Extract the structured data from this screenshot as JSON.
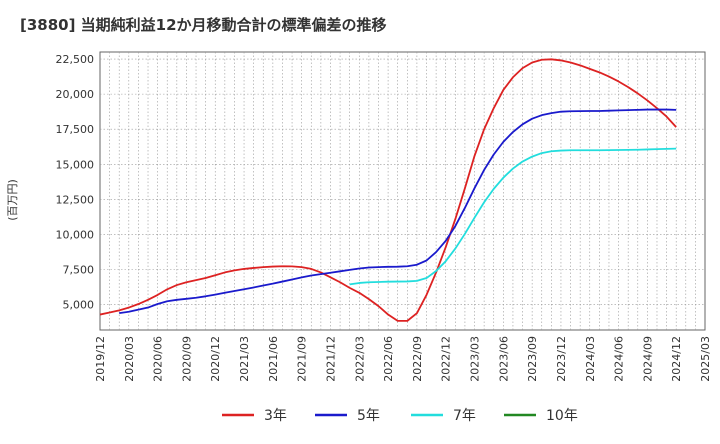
{
  "chart_data": {
    "type": "line",
    "title": "[3880]  当期純利益12か月移動合計の標準偏差の推移",
    "ylabel": "(百万円)",
    "xlabel": "",
    "ylim": [
      3200,
      23000
    ],
    "yticks": [
      5000,
      7500,
      10000,
      12500,
      15000,
      17500,
      20000,
      22500
    ],
    "ytick_labels": [
      "5,000",
      "7,500",
      "10,000",
      "12,500",
      "15,000",
      "17,500",
      "20,000",
      "22,500"
    ],
    "xticks": [
      "2019/12",
      "2020/03",
      "2020/06",
      "2020/09",
      "2020/12",
      "2021/03",
      "2021/06",
      "2021/09",
      "2021/12",
      "2022/03",
      "2022/06",
      "2022/09",
      "2022/12",
      "2023/03",
      "2023/06",
      "2023/09",
      "2023/12",
      "2024/03",
      "2024/06",
      "2024/09",
      "2024/12",
      "2025/03"
    ],
    "grid": true,
    "legend_position": "bottom",
    "series": [
      {
        "name": "3年",
        "color": "#dd2222",
        "points": [
          [
            "2019/12",
            4300
          ],
          [
            "2020/01",
            4450
          ],
          [
            "2020/02",
            4600
          ],
          [
            "2020/03",
            4800
          ],
          [
            "2020/04",
            5050
          ],
          [
            "2020/05",
            5350
          ],
          [
            "2020/06",
            5700
          ],
          [
            "2020/07",
            6100
          ],
          [
            "2020/08",
            6400
          ],
          [
            "2020/09",
            6600
          ],
          [
            "2020/10",
            6750
          ],
          [
            "2020/11",
            6900
          ],
          [
            "2020/12",
            7100
          ],
          [
            "2021/01",
            7300
          ],
          [
            "2021/02",
            7450
          ],
          [
            "2021/03",
            7550
          ],
          [
            "2021/04",
            7620
          ],
          [
            "2021/05",
            7680
          ],
          [
            "2021/06",
            7720
          ],
          [
            "2021/07",
            7740
          ],
          [
            "2021/08",
            7730
          ],
          [
            "2021/09",
            7680
          ],
          [
            "2021/10",
            7550
          ],
          [
            "2021/11",
            7300
          ],
          [
            "2021/12",
            6950
          ],
          [
            "2022/01",
            6600
          ],
          [
            "2022/02",
            6200
          ],
          [
            "2022/03",
            5850
          ],
          [
            "2022/04",
            5400
          ],
          [
            "2022/05",
            4900
          ],
          [
            "2022/06",
            4300
          ],
          [
            "2022/07",
            3850
          ],
          [
            "2022/08",
            3850
          ],
          [
            "2022/09",
            4400
          ],
          [
            "2022/10",
            5700
          ],
          [
            "2022/11",
            7300
          ],
          [
            "2022/12",
            9100
          ],
          [
            "2023/01",
            11100
          ],
          [
            "2023/02",
            13300
          ],
          [
            "2023/03",
            15600
          ],
          [
            "2023/04",
            17500
          ],
          [
            "2023/05",
            19000
          ],
          [
            "2023/06",
            20300
          ],
          [
            "2023/07",
            21200
          ],
          [
            "2023/08",
            21850
          ],
          [
            "2023/09",
            22250
          ],
          [
            "2023/10",
            22450
          ],
          [
            "2023/11",
            22480
          ],
          [
            "2023/12",
            22400
          ],
          [
            "2024/01",
            22250
          ],
          [
            "2024/02",
            22050
          ],
          [
            "2024/03",
            21800
          ],
          [
            "2024/04",
            21550
          ],
          [
            "2024/05",
            21250
          ],
          [
            "2024/06",
            20900
          ],
          [
            "2024/07",
            20500
          ],
          [
            "2024/08",
            20050
          ],
          [
            "2024/09",
            19550
          ],
          [
            "2024/10",
            19000
          ],
          [
            "2024/11",
            18400
          ],
          [
            "2024/12",
            17650
          ]
        ]
      },
      {
        "name": "5年",
        "color": "#1a1acc",
        "points": [
          [
            "2020/02",
            4400
          ],
          [
            "2020/03",
            4500
          ],
          [
            "2020/04",
            4650
          ],
          [
            "2020/05",
            4800
          ],
          [
            "2020/06",
            5050
          ],
          [
            "2020/07",
            5250
          ],
          [
            "2020/08",
            5350
          ],
          [
            "2020/09",
            5420
          ],
          [
            "2020/10",
            5500
          ],
          [
            "2020/11",
            5600
          ],
          [
            "2020/12",
            5720
          ],
          [
            "2021/01",
            5850
          ],
          [
            "2021/02",
            5980
          ],
          [
            "2021/03",
            6100
          ],
          [
            "2021/04",
            6230
          ],
          [
            "2021/05",
            6370
          ],
          [
            "2021/06",
            6500
          ],
          [
            "2021/07",
            6650
          ],
          [
            "2021/08",
            6800
          ],
          [
            "2021/09",
            6950
          ],
          [
            "2021/10",
            7080
          ],
          [
            "2021/11",
            7180
          ],
          [
            "2021/12",
            7280
          ],
          [
            "2022/01",
            7380
          ],
          [
            "2022/02",
            7480
          ],
          [
            "2022/03",
            7580
          ],
          [
            "2022/04",
            7650
          ],
          [
            "2022/05",
            7680
          ],
          [
            "2022/06",
            7700
          ],
          [
            "2022/07",
            7710
          ],
          [
            "2022/08",
            7740
          ],
          [
            "2022/09",
            7850
          ],
          [
            "2022/10",
            8150
          ],
          [
            "2022/11",
            8750
          ],
          [
            "2022/12",
            9550
          ],
          [
            "2023/01",
            10600
          ],
          [
            "2023/02",
            11900
          ],
          [
            "2023/03",
            13300
          ],
          [
            "2023/04",
            14600
          ],
          [
            "2023/05",
            15700
          ],
          [
            "2023/06",
            16600
          ],
          [
            "2023/07",
            17300
          ],
          [
            "2023/08",
            17850
          ],
          [
            "2023/09",
            18250
          ],
          [
            "2023/10",
            18500
          ],
          [
            "2023/11",
            18650
          ],
          [
            "2023/12",
            18750
          ],
          [
            "2024/01",
            18780
          ],
          [
            "2024/02",
            18790
          ],
          [
            "2024/03",
            18800
          ],
          [
            "2024/04",
            18800
          ],
          [
            "2024/05",
            18820
          ],
          [
            "2024/06",
            18840
          ],
          [
            "2024/07",
            18860
          ],
          [
            "2024/08",
            18880
          ],
          [
            "2024/09",
            18900
          ],
          [
            "2024/10",
            18900
          ],
          [
            "2024/11",
            18900
          ],
          [
            "2024/12",
            18880
          ]
        ]
      },
      {
        "name": "7年",
        "color": "#22dddd",
        "points": [
          [
            "2022/02",
            6450
          ],
          [
            "2022/03",
            6550
          ],
          [
            "2022/04",
            6600
          ],
          [
            "2022/05",
            6620
          ],
          [
            "2022/06",
            6640
          ],
          [
            "2022/07",
            6650
          ],
          [
            "2022/08",
            6660
          ],
          [
            "2022/09",
            6700
          ],
          [
            "2022/10",
            6900
          ],
          [
            "2022/11",
            7400
          ],
          [
            "2022/12",
            8100
          ],
          [
            "2023/01",
            9000
          ],
          [
            "2023/02",
            10050
          ],
          [
            "2023/03",
            11200
          ],
          [
            "2023/04",
            12300
          ],
          [
            "2023/05",
            13250
          ],
          [
            "2023/06",
            14050
          ],
          [
            "2023/07",
            14700
          ],
          [
            "2023/08",
            15200
          ],
          [
            "2023/09",
            15550
          ],
          [
            "2023/10",
            15800
          ],
          [
            "2023/11",
            15930
          ],
          [
            "2023/12",
            15980
          ],
          [
            "2024/01",
            16000
          ],
          [
            "2024/02",
            16000
          ],
          [
            "2024/03",
            16000
          ],
          [
            "2024/04",
            16000
          ],
          [
            "2024/05",
            16010
          ],
          [
            "2024/06",
            16020
          ],
          [
            "2024/07",
            16030
          ],
          [
            "2024/08",
            16040
          ],
          [
            "2024/09",
            16060
          ],
          [
            "2024/10",
            16080
          ],
          [
            "2024/11",
            16100
          ],
          [
            "2024/12",
            16120
          ]
        ]
      },
      {
        "name": "10年",
        "color": "#228822",
        "points": []
      }
    ]
  }
}
